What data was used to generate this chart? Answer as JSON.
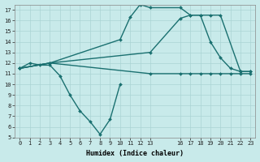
{
  "xlabel": "Humidex (Indice chaleur)",
  "bg_color": "#c8eaea",
  "grid_color": "#aad4d4",
  "line_color": "#1a7070",
  "xlim": [
    -0.5,
    23.5
  ],
  "ylim": [
    5,
    17.5
  ],
  "xticks": [
    0,
    1,
    2,
    3,
    4,
    5,
    6,
    7,
    8,
    9,
    10,
    11,
    12,
    13,
    16,
    17,
    18,
    19,
    20,
    21,
    22,
    23
  ],
  "yticks": [
    5,
    6,
    7,
    8,
    9,
    10,
    11,
    12,
    13,
    14,
    15,
    16,
    17
  ],
  "lines": [
    {
      "x": [
        0,
        1,
        2,
        3,
        4,
        5,
        6,
        7,
        8,
        9,
        10
      ],
      "y": [
        11.5,
        12.0,
        11.8,
        11.8,
        10.8,
        9.0,
        7.5,
        6.5,
        5.3,
        6.7,
        10.0
      ]
    },
    {
      "x": [
        0,
        3,
        10,
        11,
        12,
        13,
        16,
        17,
        18,
        19,
        20,
        22,
        23
      ],
      "y": [
        11.5,
        12.0,
        14.2,
        16.3,
        17.5,
        17.2,
        17.2,
        16.5,
        16.5,
        16.5,
        16.5,
        11.2,
        11.2
      ]
    },
    {
      "x": [
        0,
        3,
        13,
        16,
        17,
        18,
        19,
        20,
        21,
        22,
        23
      ],
      "y": [
        11.5,
        12.0,
        13.0,
        16.2,
        16.5,
        16.5,
        14.0,
        12.5,
        11.5,
        11.2,
        11.2
      ]
    },
    {
      "x": [
        0,
        3,
        13,
        16,
        17,
        18,
        19,
        20,
        21,
        22,
        23
      ],
      "y": [
        11.5,
        12.0,
        11.0,
        11.0,
        11.0,
        11.0,
        11.0,
        11.0,
        11.0,
        11.0,
        11.0
      ]
    }
  ]
}
